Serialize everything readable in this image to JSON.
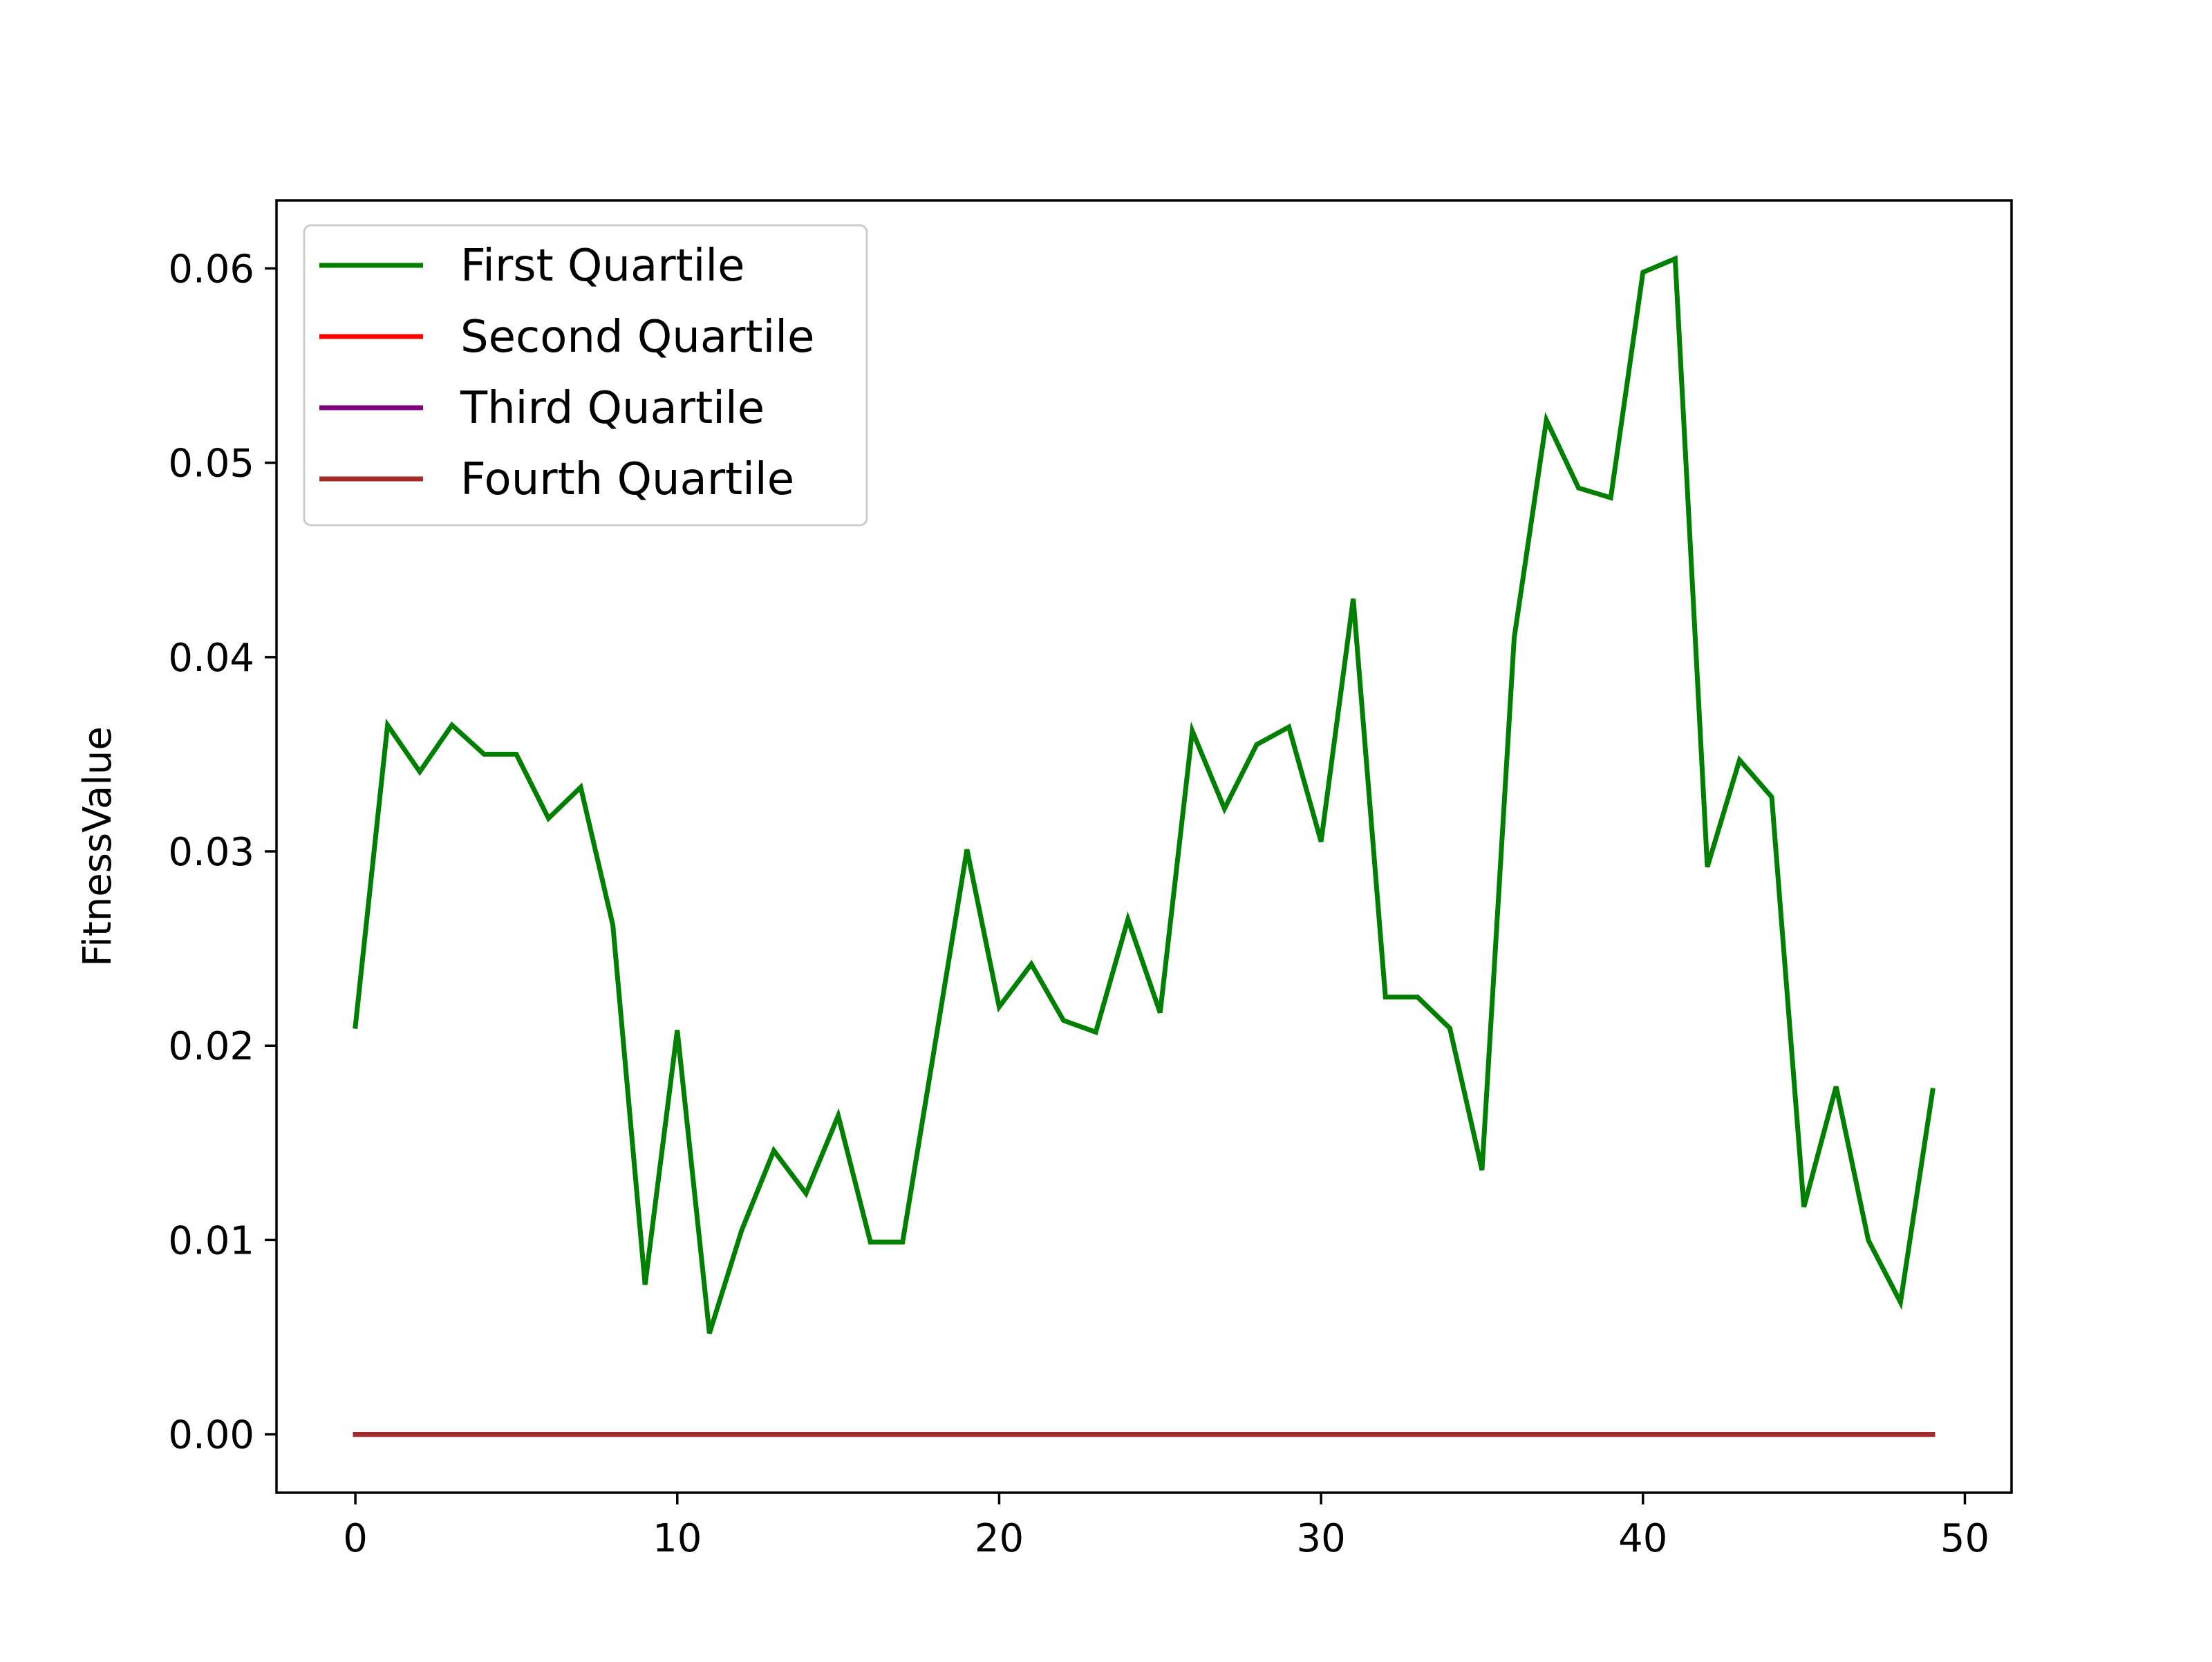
{
  "chart_data": {
    "type": "line",
    "title": "",
    "xlabel": "",
    "ylabel": "FitnessValue",
    "xlim": [
      -2.45,
      51.45
    ],
    "ylim": [
      -0.003,
      0.0635
    ],
    "xticks": [
      0,
      10,
      20,
      30,
      40,
      50
    ],
    "xtick_labels": [
      "0",
      "10",
      "20",
      "30",
      "40",
      "50"
    ],
    "yticks": [
      0.0,
      0.01,
      0.02,
      0.03,
      0.04,
      0.05,
      0.06
    ],
    "ytick_labels": [
      "0.00",
      "0.01",
      "0.02",
      "0.03",
      "0.04",
      "0.05",
      "0.06"
    ],
    "grid": false,
    "legend_position": "upper-left",
    "x": [
      0,
      1,
      2,
      3,
      4,
      5,
      6,
      7,
      8,
      9,
      10,
      11,
      12,
      13,
      14,
      15,
      16,
      17,
      18,
      19,
      20,
      21,
      22,
      23,
      24,
      25,
      26,
      27,
      28,
      29,
      30,
      31,
      32,
      33,
      34,
      35,
      36,
      37,
      38,
      39,
      40,
      41,
      42,
      43,
      44,
      45,
      46,
      47,
      48,
      49
    ],
    "series": [
      {
        "name": "First Quartile",
        "color": "#008000",
        "values": [
          0.021,
          0.0365,
          0.0341,
          0.0365,
          0.035,
          0.035,
          0.0317,
          0.0333,
          0.0262,
          0.0077,
          0.0208,
          0.0052,
          0.0105,
          0.0146,
          0.0124,
          0.0164,
          0.0099,
          0.0099,
          0.02,
          0.0301,
          0.022,
          0.0242,
          0.0213,
          0.0207,
          0.0265,
          0.0217,
          0.0362,
          0.0322,
          0.0355,
          0.0364,
          0.0305,
          0.043,
          0.0225,
          0.0225,
          0.0209,
          0.0136,
          0.041,
          0.0522,
          0.0487,
          0.0482,
          0.0598,
          0.0605,
          0.0292,
          0.0347,
          0.0328,
          0.0117,
          0.0179,
          0.01,
          0.0068,
          0.0177
        ]
      },
      {
        "name": "Second Quartile",
        "color": "#ff0000",
        "values": [
          0,
          0,
          0,
          0,
          0,
          0,
          0,
          0,
          0,
          0,
          0,
          0,
          0,
          0,
          0,
          0,
          0,
          0,
          0,
          0,
          0,
          0,
          0,
          0,
          0,
          0,
          0,
          0,
          0,
          0,
          0,
          0,
          0,
          0,
          0,
          0,
          0,
          0,
          0,
          0,
          0,
          0,
          0,
          0,
          0,
          0,
          0,
          0,
          0,
          0
        ]
      },
      {
        "name": "Third Quartile",
        "color": "#800080",
        "values": [
          0,
          0,
          0,
          0,
          0,
          0,
          0,
          0,
          0,
          0,
          0,
          0,
          0,
          0,
          0,
          0,
          0,
          0,
          0,
          0,
          0,
          0,
          0,
          0,
          0,
          0,
          0,
          0,
          0,
          0,
          0,
          0,
          0,
          0,
          0,
          0,
          0,
          0,
          0,
          0,
          0,
          0,
          0,
          0,
          0,
          0,
          0,
          0,
          0,
          0
        ]
      },
      {
        "name": "Fourth Quartile",
        "color": "#a52a2a",
        "values": [
          0,
          0,
          0,
          0,
          0,
          0,
          0,
          0,
          0,
          0,
          0,
          0,
          0,
          0,
          0,
          0,
          0,
          0,
          0,
          0,
          0,
          0,
          0,
          0,
          0,
          0,
          0,
          0,
          0,
          0,
          0,
          0,
          0,
          0,
          0,
          0,
          0,
          0,
          0,
          0,
          0,
          0,
          0,
          0,
          0,
          0,
          0,
          0,
          0,
          0
        ]
      }
    ]
  }
}
